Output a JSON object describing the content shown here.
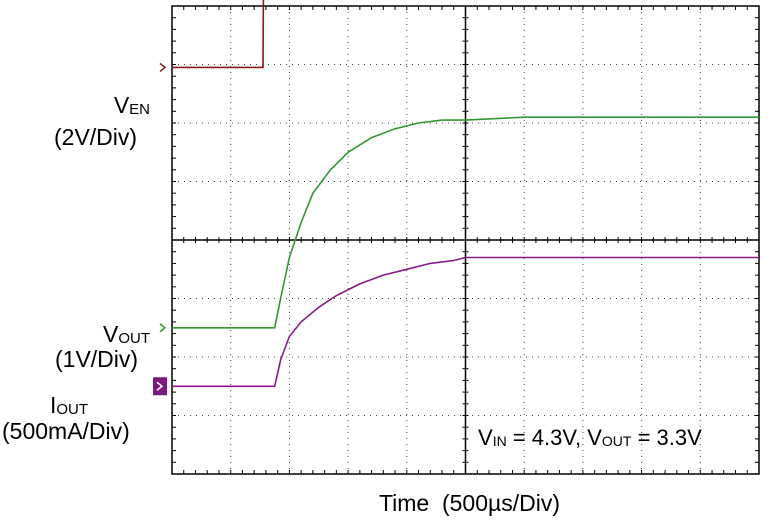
{
  "chart_data": {
    "type": "line",
    "x_unit_label": "Time",
    "x_scale_label": "(500µs/Div)",
    "x_divisions": 10,
    "y_divisions": 8,
    "x_range_divisions": [
      0,
      10
    ],
    "y_range_divisions": [
      0,
      8
    ],
    "grid": "dotted",
    "series": [
      {
        "name_main": "V",
        "name_sub": "EN",
        "scale": "(2V/Div)",
        "color": "#8B1A1A",
        "x_div": [
          0,
          1.55,
          1.56,
          10
        ],
        "y_div": [
          6.95,
          6.95,
          8.75,
          8.75
        ]
      },
      {
        "name_main": "V",
        "name_sub": "OUT",
        "scale": "(1V/Div)",
        "color": "#2E9A2E",
        "x_div": [
          0,
          1.75,
          1.85,
          2.0,
          2.2,
          2.4,
          2.7,
          3.0,
          3.4,
          3.8,
          4.2,
          4.6,
          5.0,
          6.0,
          10
        ],
        "y_div": [
          2.5,
          2.5,
          3.0,
          3.7,
          4.3,
          4.8,
          5.2,
          5.5,
          5.75,
          5.9,
          6.0,
          6.05,
          6.05,
          6.1,
          6.1
        ]
      },
      {
        "name_main": "I",
        "name_sub": "OUT",
        "scale": "(500mA/Div)",
        "color": "#8B1A8B",
        "marker_color": "#7B1A7B",
        "x_div": [
          0,
          1.75,
          1.85,
          2.0,
          2.2,
          2.5,
          2.8,
          3.2,
          3.6,
          4.0,
          4.4,
          4.8,
          5.0,
          10
        ],
        "y_div": [
          1.5,
          1.5,
          1.95,
          2.35,
          2.6,
          2.85,
          3.05,
          3.25,
          3.4,
          3.5,
          3.6,
          3.65,
          3.7,
          3.7
        ]
      }
    ],
    "annotation": {
      "vin_main": "V",
      "vin_sub": "IN",
      "vin_value": " = 4.3V,",
      "vout_main": "V",
      "vout_sub": "OUT",
      "vout_value": " = 3.3V"
    }
  }
}
